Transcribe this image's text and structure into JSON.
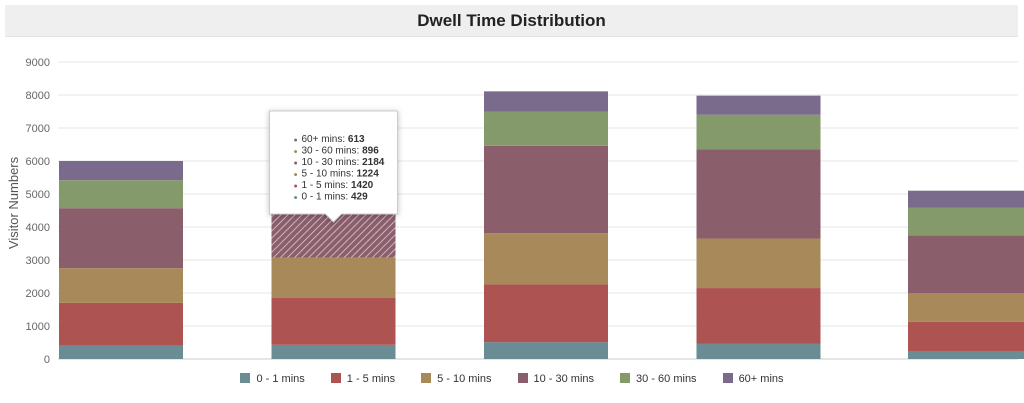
{
  "chart_data": {
    "type": "bar",
    "stacked": true,
    "title": "Dwell Time Distribution",
    "xlabel": "",
    "ylabel": "Visitor Numbers",
    "ylim": [
      0,
      9000
    ],
    "yticks": [
      "0",
      "1000",
      "2000",
      "3000",
      "4000",
      "5000",
      "6000",
      "7000",
      "8000",
      "9000"
    ],
    "categories": [
      "",
      "",
      "",
      "",
      ""
    ],
    "grid": true,
    "legend_position": "bottom",
    "series": [
      {
        "name": "0 - 1 mins",
        "color": "#6a8c94",
        "values": [
          400,
          429,
          510,
          470,
          230
        ]
      },
      {
        "name": "1 - 5 mins",
        "color": "#ad5453",
        "values": [
          1300,
          1420,
          1750,
          1680,
          900
        ]
      },
      {
        "name": "5 - 10 mins",
        "color": "#a88a5a",
        "values": [
          1050,
          1224,
          1550,
          1500,
          870
        ]
      },
      {
        "name": "10 - 30 mins",
        "color": "#8b5e6c",
        "values": [
          1820,
          2184,
          2650,
          2700,
          1750
        ]
      },
      {
        "name": "30 - 60 mins",
        "color": "#859a6b",
        "values": [
          850,
          896,
          1030,
          1050,
          830
        ]
      },
      {
        "name": "60+ mins",
        "color": "#7a6a8c",
        "values": [
          580,
          613,
          620,
          580,
          520
        ]
      }
    ],
    "hovered_index": 1,
    "tooltip": [
      {
        "label": "60+ mins",
        "value": "613"
      },
      {
        "label": "30 - 60 mins",
        "value": "896"
      },
      {
        "label": "10 - 30 mins",
        "value": "2184"
      },
      {
        "label": "5 - 10 mins",
        "value": "1224"
      },
      {
        "label": "1 - 5 mins",
        "value": "1420"
      },
      {
        "label": "0 - 1 mins",
        "value": "429"
      }
    ]
  }
}
